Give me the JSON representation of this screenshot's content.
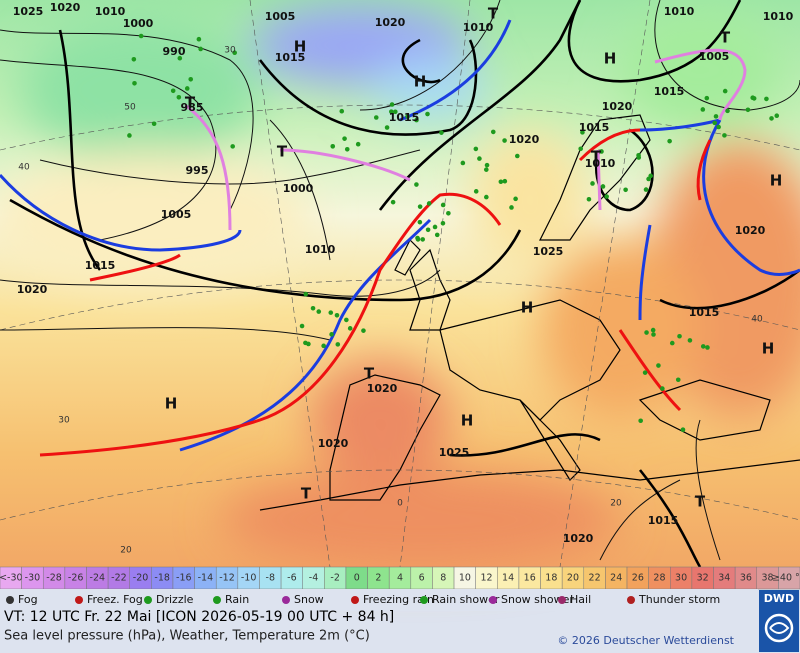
{
  "map": {
    "isobar_labels": [
      1025,
      1020,
      1010,
      1000,
      990,
      985,
      995,
      1005,
      1000,
      1010,
      1015,
      1020,
      1005,
      1015,
      1020,
      1010,
      1015,
      1020,
      1025,
      1020,
      1015,
      1010,
      1015,
      1010,
      1010,
      1005,
      1020,
      1015,
      1020,
      1020,
      1025,
      1015,
      1020
    ],
    "temperature_labels": [
      30,
      50,
      40,
      30,
      20,
      40,
      20,
      0
    ],
    "pressure_centers": [
      "H",
      "H",
      "T",
      "T",
      "H",
      "T",
      "T",
      "H",
      "H",
      "H",
      "T",
      "H",
      "H",
      "T",
      "T",
      "T"
    ]
  },
  "temperature_scale": {
    "low_label": "<-30",
    "values": [
      -30,
      -28,
      -26,
      -24,
      -22,
      -20,
      -18,
      -16,
      -14,
      -12,
      -10,
      -8,
      -6,
      -4,
      -2,
      0,
      2,
      4,
      6,
      8,
      10,
      12,
      14,
      16,
      18,
      20,
      22,
      24,
      26,
      28,
      30,
      32,
      34,
      36,
      38
    ],
    "high_label": "≥40 °C",
    "low_color": "#e8a8f0",
    "colors": [
      "#dc96ee",
      "#d28ae8",
      "#c882e6",
      "#bc7ce4",
      "#b27ae6",
      "#9a7ef0",
      "#8c8cf4",
      "#8a9ef6",
      "#8cb2f6",
      "#96c4f6",
      "#a4d6f6",
      "#a8e2f2",
      "#aeecec",
      "#b4f0e0",
      "#a8eec0",
      "#7edc8a",
      "#8ee48e",
      "#a4ec9c",
      "#bcf2aa",
      "#d6f6b8",
      "#f6f6e4",
      "#faf6cc",
      "#fbf0b4",
      "#fbe8a0",
      "#fae08e",
      "#f8d47c",
      "#f6c66e",
      "#f4b462",
      "#f2a25c",
      "#ef9060",
      "#ec8068",
      "#e8766e",
      "#e47c7c",
      "#e08a8a",
      "#dc9898"
    ],
    "high_color": "#d8a4a8"
  },
  "weather_legend": [
    "Fog",
    "Freez. Fog",
    "Drizzle",
    "Rain",
    "Snow",
    "Freezing rain",
    "Rain shower",
    "Snow shower",
    "Hail",
    "Thunder storm"
  ],
  "footer": {
    "valid_time": "VT: 12 UTC Fr.  22 Mai [ICON 2026-05-19  00 UTC + 84 h]",
    "description": "Sea level pressure (hPa), Weather, Temperature 2m (°C)",
    "copyright": "© 2026 Deutscher Wetterdienst",
    "logo": "DWD"
  }
}
